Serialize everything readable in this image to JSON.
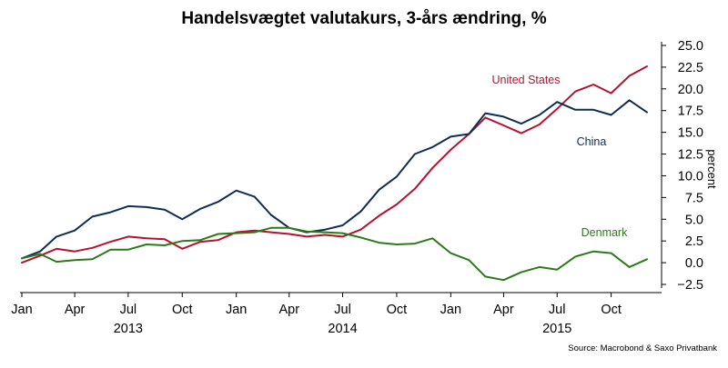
{
  "chart_data": {
    "type": "line",
    "title": "Handelsvægtet valutakurs, 3-års ændring, %",
    "ylabel": "percent",
    "source": "Source: Macrobond & Saxo Privatbank",
    "ylim": [
      -2.5,
      25
    ],
    "yticks": [
      {
        "value": 25,
        "label": "25.0"
      },
      {
        "value": 22.5,
        "label": "22.5"
      },
      {
        "value": 20,
        "label": "20.0"
      },
      {
        "value": 17.5,
        "label": "17.5"
      },
      {
        "value": 15,
        "label": "15.0"
      },
      {
        "value": 12.5,
        "label": "12.5"
      },
      {
        "value": 10,
        "label": "10.0"
      },
      {
        "value": 7.5,
        "label": "7.5"
      },
      {
        "value": 5,
        "label": "5.0"
      },
      {
        "value": 2.5,
        "label": "2.5"
      },
      {
        "value": 0,
        "label": "0.0"
      },
      {
        "value": -2.5,
        "label": "−2.5"
      }
    ],
    "xticks": [
      {
        "date": "2013-01-01",
        "label": "Jan"
      },
      {
        "date": "2013-04-01",
        "label": "Apr"
      },
      {
        "date": "2013-07-01",
        "label": "Jul"
      },
      {
        "date": "2013-10-01",
        "label": "Oct"
      },
      {
        "date": "2014-01-01",
        "label": "Jan"
      },
      {
        "date": "2014-04-01",
        "label": "Apr"
      },
      {
        "date": "2014-07-01",
        "label": "Jul"
      },
      {
        "date": "2014-10-01",
        "label": "Oct"
      },
      {
        "date": "2015-01-01",
        "label": "Jan"
      },
      {
        "date": "2015-04-01",
        "label": "Apr"
      },
      {
        "date": "2015-07-01",
        "label": "Jul"
      },
      {
        "date": "2015-10-01",
        "label": "Oct"
      }
    ],
    "year_labels": [
      {
        "date": "2013-07-01",
        "label": "2013"
      },
      {
        "date": "2014-07-01",
        "label": "2014"
      },
      {
        "date": "2015-07-01",
        "label": "2015"
      }
    ],
    "x": [
      "2013-01",
      "2013-02",
      "2013-03",
      "2013-04",
      "2013-05",
      "2013-06",
      "2013-07",
      "2013-08",
      "2013-09",
      "2013-10",
      "2013-11",
      "2013-12",
      "2014-01",
      "2014-02",
      "2014-03",
      "2014-04",
      "2014-05",
      "2014-06",
      "2014-07",
      "2014-08",
      "2014-09",
      "2014-10",
      "2014-11",
      "2014-12",
      "2015-01",
      "2015-02",
      "2015-03",
      "2015-04",
      "2015-05",
      "2015-06",
      "2015-07",
      "2015-08",
      "2015-09",
      "2015-10",
      "2015-11",
      "2015-12"
    ],
    "series": [
      {
        "name": "United States",
        "color": "#b5122e",
        "values": [
          0.0,
          0.8,
          1.6,
          1.3,
          1.7,
          2.4,
          3.0,
          2.8,
          2.7,
          1.6,
          2.4,
          2.6,
          3.5,
          3.7,
          3.5,
          3.3,
          3.0,
          3.2,
          3.0,
          3.8,
          5.4,
          6.7,
          8.5,
          10.9,
          13.0,
          14.8,
          16.7,
          15.8,
          14.9,
          15.9,
          17.7,
          19.7,
          20.5,
          19.5,
          21.5,
          22.6
        ]
      },
      {
        "name": "China",
        "color": "#0f2d52",
        "values": [
          0.5,
          1.3,
          3.0,
          3.7,
          5.3,
          5.8,
          6.5,
          6.4,
          6.1,
          5.0,
          6.2,
          7.0,
          8.3,
          7.6,
          5.5,
          4.0,
          3.5,
          3.8,
          4.3,
          5.9,
          8.4,
          9.9,
          12.5,
          13.3,
          14.5,
          14.8,
          17.2,
          16.8,
          16.0,
          17.0,
          18.5,
          17.6,
          17.6,
          17.0,
          18.7,
          17.3
        ]
      },
      {
        "name": "Denmark",
        "color": "#2b7a1a",
        "values": [
          0.5,
          1.0,
          0.1,
          0.3,
          0.4,
          1.5,
          1.5,
          2.1,
          2.0,
          2.5,
          2.6,
          3.3,
          3.4,
          3.5,
          4.0,
          4.0,
          3.6,
          3.5,
          3.4,
          2.9,
          2.3,
          2.1,
          2.2,
          2.8,
          1.1,
          0.3,
          -1.6,
          -2.0,
          -1.1,
          -0.5,
          -0.8,
          0.7,
          1.3,
          1.1,
          -0.5,
          0.4
        ]
      }
    ]
  }
}
